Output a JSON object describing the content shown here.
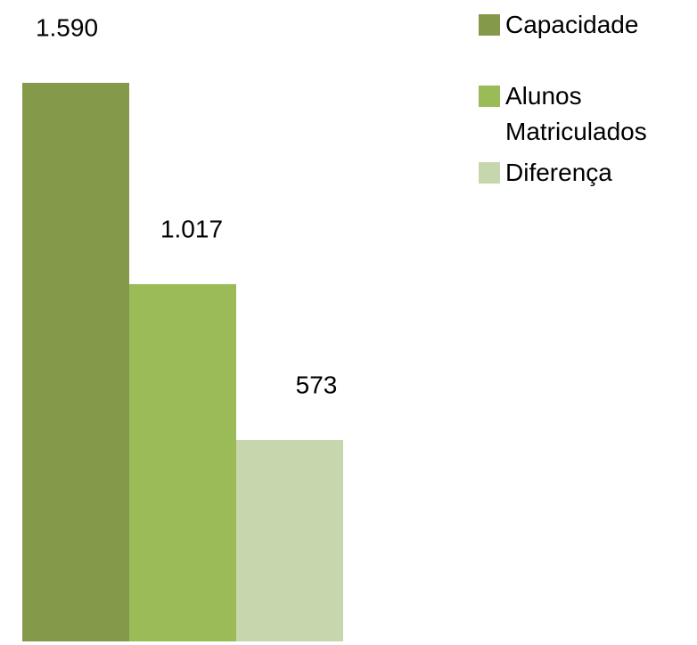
{
  "chart_data": {
    "type": "bar",
    "series": [
      {
        "name": "Capacidade",
        "color": "#84994a",
        "values": [
          1590
        ],
        "value_labels": [
          "1.590"
        ]
      },
      {
        "name": "Alunos Matriculados",
        "color": "#9bbb59",
        "values": [
          1017
        ],
        "value_labels": [
          "1.017"
        ]
      },
      {
        "name": "Diferença",
        "color": "#c6d6ad",
        "values": [
          573
        ],
        "value_labels": [
          "573"
        ]
      }
    ],
    "ylim": [
      0,
      1600
    ],
    "legend": "right"
  }
}
